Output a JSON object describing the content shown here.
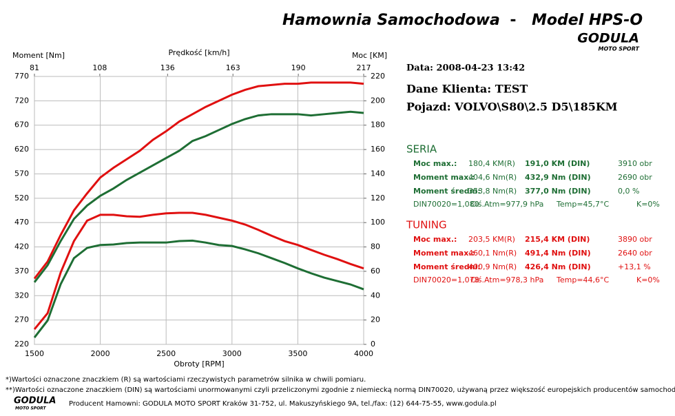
{
  "header": {
    "title": "Hamownia Samochodowa",
    "separator": "-",
    "model": "Model HPS-O",
    "logo": "GODULA",
    "logo_sub": "MOTO SPORT"
  },
  "info": {
    "date": "Data: 2008-04-23  13:42",
    "client": "Dane Klienta: TEST",
    "vehicle": "Pojazd: VOLVO\\S80\\2.5 D5\\185KM"
  },
  "seria": {
    "title": "SERIA",
    "rows": [
      [
        "Moc max.:",
        "180,4 KM(R)",
        "191,0 KM (DIN)",
        "3910 obr"
      ],
      [
        "Moment max.:",
        "404,6 Nm(R)",
        "432,9 Nm (DIN)",
        "2690 obr"
      ],
      [
        "Moment średni:",
        "353,8 Nm(R)",
        "377,0 Nm (DIN)",
        "0,0 %"
      ]
    ],
    "footer": [
      "DIN70020=1,080",
      "Ciś.Atm=977,9 hPa",
      "Temp=45,7°C",
      "K=0%"
    ]
  },
  "tuning": {
    "title": "TUNING",
    "rows": [
      [
        "Moc max.:",
        "203,5 KM(R)",
        "215,4 KM (DIN)",
        "3890 obr"
      ],
      [
        "Moment max.:",
        "460,1 Nm(R)",
        "491,4 Nm (DIN)",
        "2640 obr"
      ],
      [
        "Moment średni:",
        "400,9 Nm(R)",
        "426,4 Nm (DIN)",
        "+13,1 %"
      ]
    ],
    "footer": [
      "DIN70020=1,078",
      "Ciś.Atm=978,3 hPa",
      "Temp=44,6°C",
      "K=0%"
    ]
  },
  "footnotes": [
    "*)Wartości oznaczone znaczkiem (R) są wartościami rzeczywistych parametrów silnika w chwili pomiaru.",
    "**)Wartości oznaczone znaczkiem (DIN) są wartościami unormowanymi czyli przeliczonymi zgodnie z niemiecką normą DIN70020, używaną przez większość europejskich producentów samochodów."
  ],
  "producer": "Producent Hamowni: GODULA MOTO SPORT Kraków 31-752, ul. Makuszyńskiego 9A, tel./fax: (12) 644-75-55, www.godula.pl",
  "chart_data": {
    "type": "line",
    "ylabel": "Moment [Nm]",
    "y2label": "Moc [KM]",
    "xlabel": "Obroty [RPM]",
    "x2label": "Prędkość [km/h]",
    "x": [
      1500,
      1600,
      1700,
      1800,
      1900,
      2000,
      2100,
      2200,
      2300,
      2400,
      2500,
      2600,
      2700,
      2800,
      2900,
      3000,
      3100,
      3200,
      3300,
      3400,
      3500,
      3600,
      3700,
      3800,
      3900,
      4000
    ],
    "xlim": [
      1500,
      4000
    ],
    "xticks": [
      1500,
      2000,
      2500,
      3000,
      3500,
      4000
    ],
    "x2lim": [
      81,
      217
    ],
    "x2ticks": [
      81,
      108,
      136,
      163,
      190,
      217
    ],
    "ylim": [
      220,
      770
    ],
    "yticks": [
      220,
      270,
      320,
      370,
      420,
      470,
      520,
      570,
      620,
      670,
      720,
      770
    ],
    "y2lim": [
      0,
      220
    ],
    "y2ticks": [
      0,
      20,
      40,
      60,
      80,
      100,
      120,
      140,
      160,
      180,
      200,
      220
    ],
    "grid": true,
    "series": [
      {
        "color": "#e01010",
        "axis": "y2",
        "values": [
          54,
          68,
          90,
          110,
          124,
          137,
          145,
          152,
          159,
          168,
          175,
          183,
          189,
          195,
          200,
          205,
          209,
          212,
          213,
          214,
          214,
          215,
          215,
          215,
          215,
          214
        ]
      },
      {
        "color": "#1e6e34",
        "axis": "y2",
        "values": [
          51,
          65,
          85,
          103,
          114,
          122,
          128,
          135,
          141,
          147,
          153,
          159,
          167,
          171,
          176,
          181,
          185,
          188,
          189,
          189,
          189,
          188,
          189,
          190,
          191,
          190
        ]
      },
      {
        "color": "#e01010",
        "axis": "y",
        "values": [
          251,
          284,
          368,
          432,
          474,
          486,
          486,
          483,
          482,
          486,
          489,
          490,
          490,
          486,
          480,
          474,
          466,
          455,
          443,
          432,
          424,
          414,
          404,
          395,
          385,
          376
        ]
      },
      {
        "color": "#1e6e34",
        "axis": "y",
        "values": [
          234,
          269,
          344,
          397,
          418,
          424,
          425,
          428,
          429,
          429,
          429,
          432,
          433,
          429,
          424,
          422,
          415,
          407,
          397,
          387,
          376,
          366,
          357,
          350,
          343,
          333
        ]
      }
    ]
  }
}
